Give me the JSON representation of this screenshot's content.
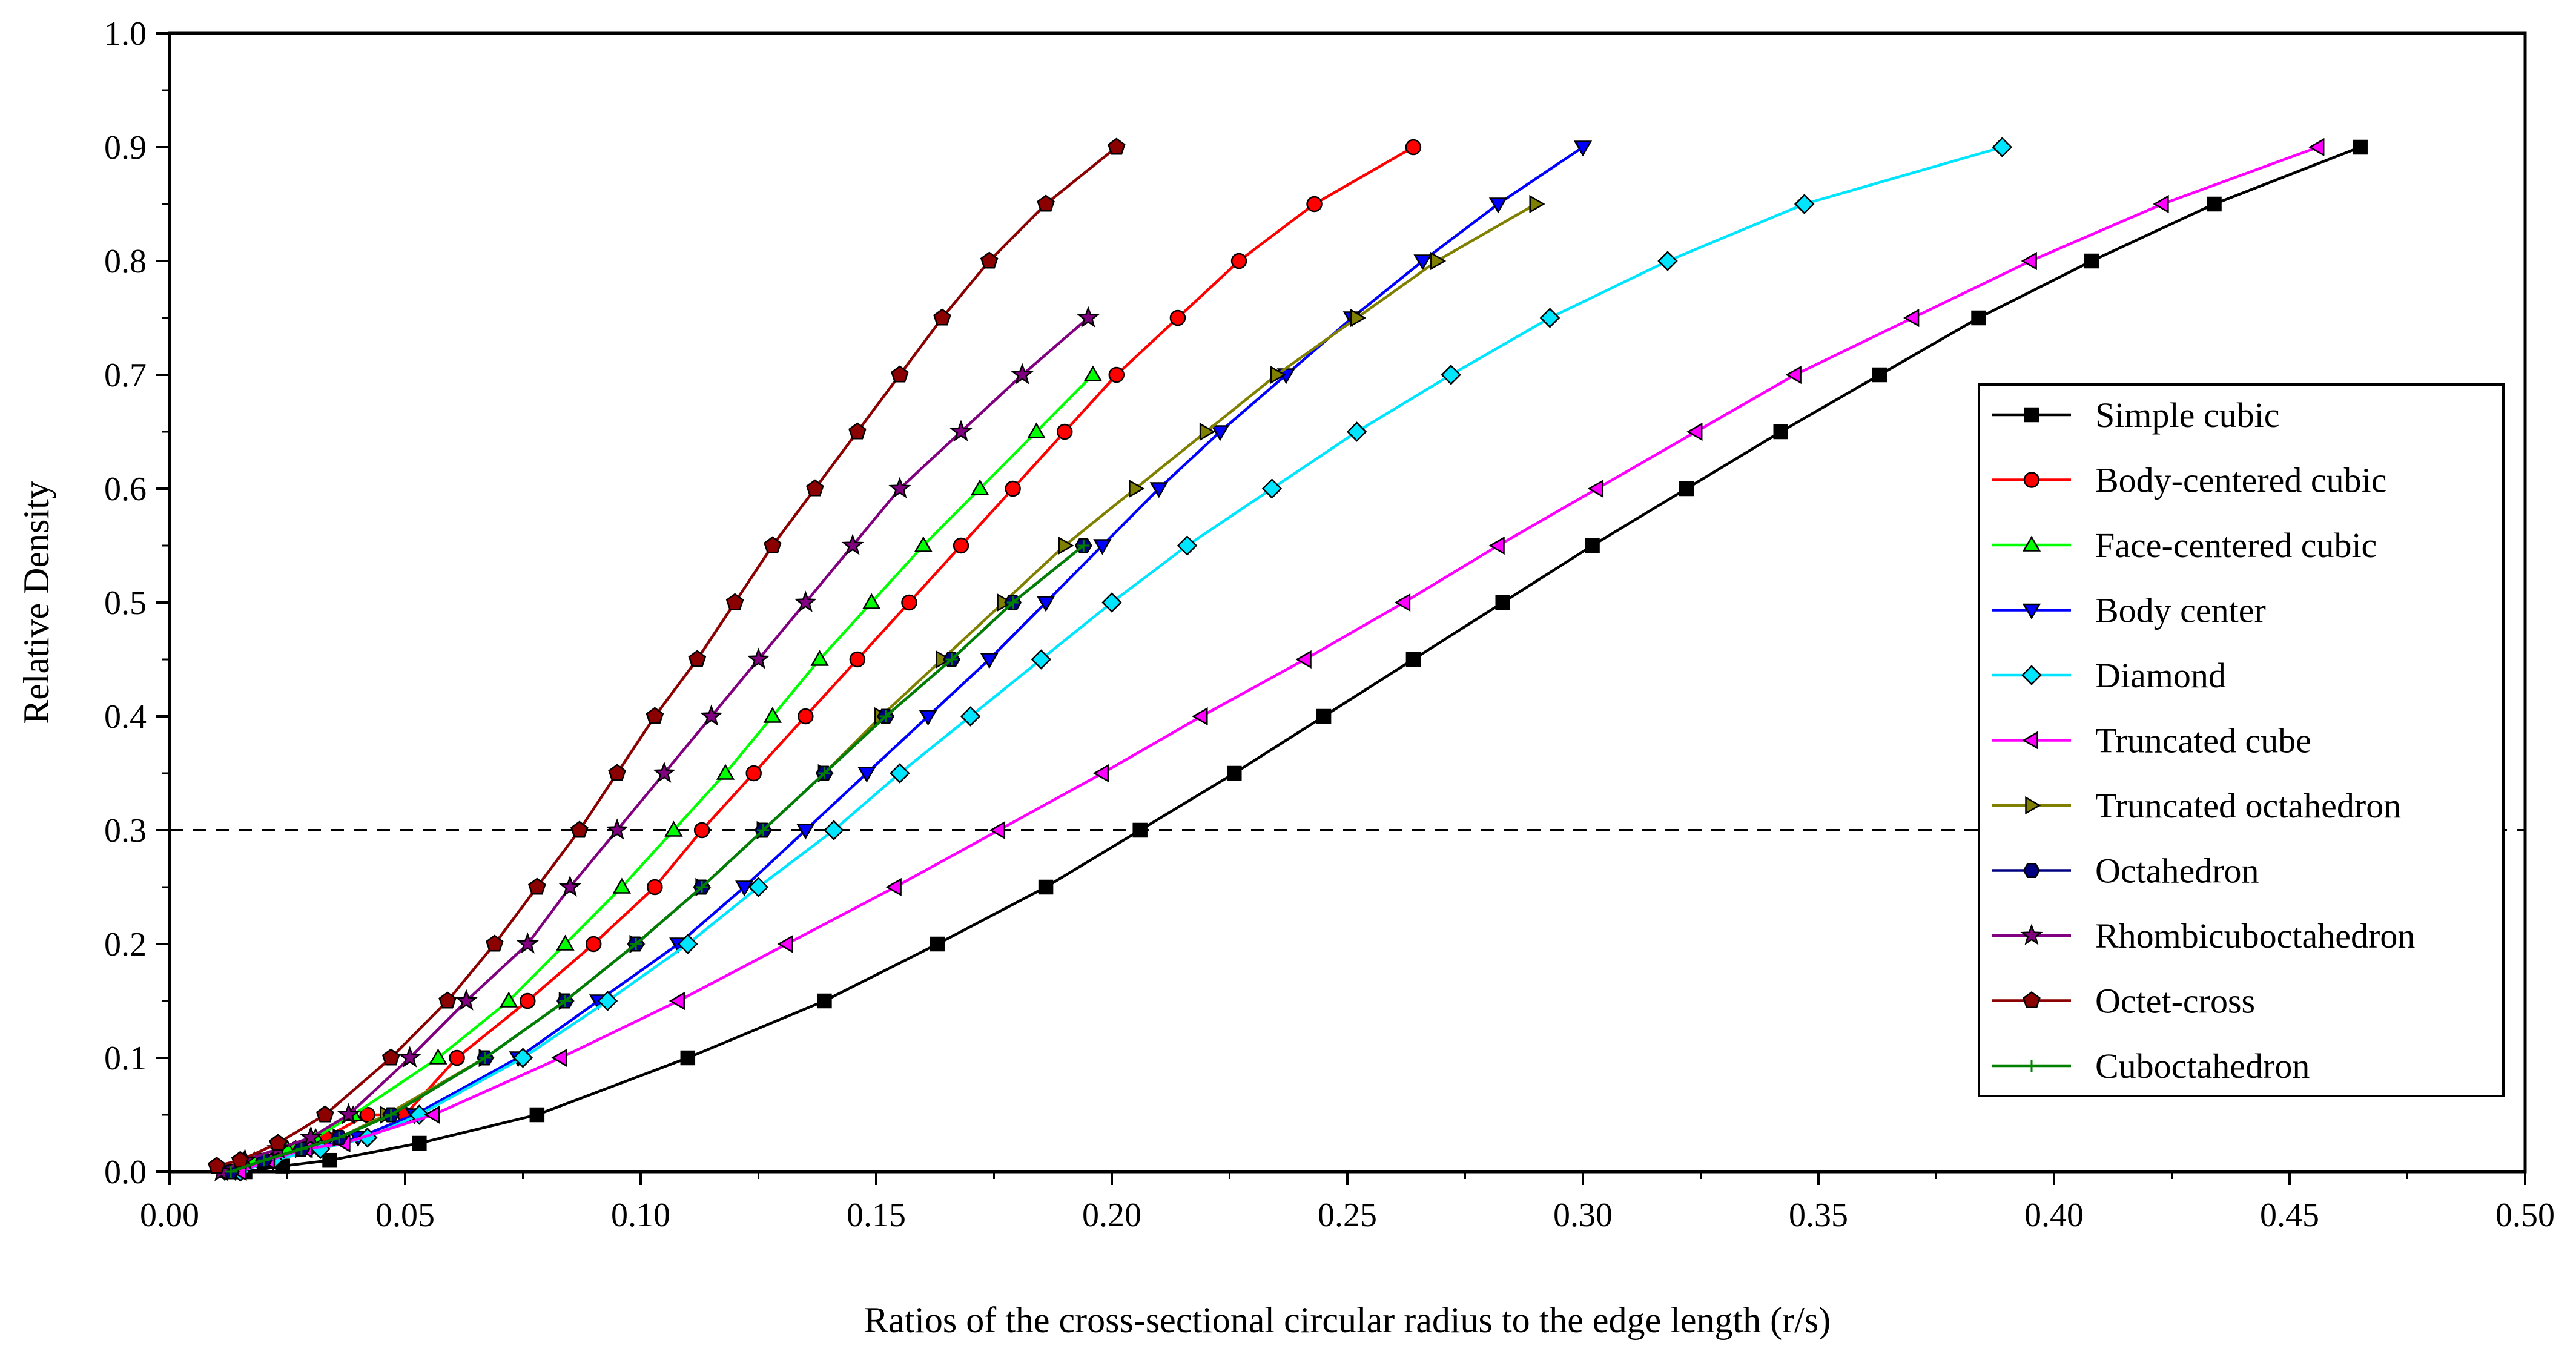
{
  "chart_data": {
    "type": "line",
    "title": "",
    "xlabel": "Ratios of the cross-sectional circular radius to the edge length (r/s)",
    "ylabel": "Relative Density",
    "xlim": [
      0.0,
      0.5
    ],
    "ylim": [
      0.0,
      1.0
    ],
    "xticks": [
      0.0,
      0.05,
      0.1,
      0.15,
      0.2,
      0.25,
      0.3,
      0.35,
      0.4,
      0.45,
      0.5
    ],
    "xtick_labels": [
      "0.00",
      "0.05",
      "0.10",
      "0.15",
      "0.20",
      "0.25",
      "0.30",
      "0.35",
      "0.40",
      "0.45",
      "0.50"
    ],
    "yticks": [
      0.0,
      0.1,
      0.2,
      0.3,
      0.4,
      0.5,
      0.6,
      0.7,
      0.8,
      0.9,
      1.0
    ],
    "ytick_labels": [
      "0.0",
      "0.1",
      "0.2",
      "0.3",
      "0.4",
      "0.5",
      "0.6",
      "0.7",
      "0.8",
      "0.9",
      "1.0"
    ],
    "grid": false,
    "legend_position": "right",
    "reference_line": {
      "y": 0.3,
      "style": "dashed"
    },
    "series": [
      {
        "name": "Simple cubic",
        "color": "#000000",
        "marker": "square",
        "x": [
          0.016,
          0.024,
          0.034,
          0.053,
          0.078,
          0.11,
          0.139,
          0.163,
          0.186,
          0.206,
          0.226,
          0.245,
          0.264,
          0.283,
          0.302,
          0.322,
          0.342,
          0.363,
          0.384,
          0.408,
          0.434,
          0.465
        ],
        "y": [
          0.0,
          0.005,
          0.01,
          0.025,
          0.05,
          0.1,
          0.15,
          0.2,
          0.25,
          0.3,
          0.35,
          0.4,
          0.45,
          0.5,
          0.55,
          0.6,
          0.65,
          0.7,
          0.75,
          0.8,
          0.85,
          0.9
        ]
      },
      {
        "name": "Body-centered cubic",
        "color": "#ff0000",
        "marker": "circle",
        "x": [
          0.012,
          0.019,
          0.027,
          0.033,
          0.042,
          0.05,
          0.061,
          0.076,
          0.09,
          0.103,
          0.113,
          0.124,
          0.135,
          0.146,
          0.157,
          0.168,
          0.179,
          0.19,
          0.201,
          0.214,
          0.227,
          0.243,
          0.264
        ],
        "y": [
          0.0,
          0.01,
          0.02,
          0.03,
          0.05,
          0.05,
          0.1,
          0.15,
          0.2,
          0.25,
          0.3,
          0.35,
          0.4,
          0.45,
          0.5,
          0.55,
          0.6,
          0.65,
          0.7,
          0.75,
          0.8,
          0.85,
          0.9
        ]
      },
      {
        "name": "Face-centered cubic",
        "color": "#00ff00",
        "marker": "triangle-up",
        "x": [
          0.012,
          0.018,
          0.025,
          0.031,
          0.039,
          0.057,
          0.072,
          0.084,
          0.096,
          0.107,
          0.118,
          0.128,
          0.138,
          0.149,
          0.16,
          0.172,
          0.184,
          0.196
        ],
        "y": [
          0.0,
          0.01,
          0.02,
          0.03,
          0.05,
          0.1,
          0.15,
          0.2,
          0.25,
          0.3,
          0.35,
          0.4,
          0.45,
          0.5,
          0.55,
          0.6,
          0.65,
          0.7
        ]
      },
      {
        "name": "Body center",
        "color": "#0000ff",
        "marker": "triangle-down",
        "x": [
          0.014,
          0.021,
          0.03,
          0.04,
          0.052,
          0.074,
          0.091,
          0.108,
          0.122,
          0.135,
          0.148,
          0.161,
          0.174,
          0.186,
          0.198,
          0.21,
          0.223,
          0.237,
          0.251,
          0.266,
          0.282,
          0.3
        ],
        "y": [
          0.0,
          0.01,
          0.02,
          0.03,
          0.05,
          0.1,
          0.15,
          0.2,
          0.25,
          0.3,
          0.35,
          0.4,
          0.45,
          0.5,
          0.55,
          0.6,
          0.65,
          0.7,
          0.75,
          0.8,
          0.85,
          0.9
        ]
      },
      {
        "name": "Diamond",
        "color": "#00e5ff",
        "marker": "diamond",
        "x": [
          0.015,
          0.022,
          0.032,
          0.042,
          0.053,
          0.075,
          0.093,
          0.11,
          0.125,
          0.141,
          0.155,
          0.17,
          0.185,
          0.2,
          0.216,
          0.234,
          0.252,
          0.272,
          0.293,
          0.318,
          0.347,
          0.389
        ],
        "y": [
          0.0,
          0.01,
          0.02,
          0.03,
          0.05,
          0.1,
          0.15,
          0.2,
          0.25,
          0.3,
          0.35,
          0.4,
          0.45,
          0.5,
          0.55,
          0.6,
          0.65,
          0.7,
          0.75,
          0.8,
          0.85,
          0.9
        ]
      },
      {
        "name": "Truncated cube",
        "color": "#ff00ff",
        "marker": "triangle-left",
        "x": [
          0.015,
          0.021,
          0.029,
          0.037,
          0.056,
          0.083,
          0.108,
          0.131,
          0.154,
          0.176,
          0.198,
          0.219,
          0.241,
          0.262,
          0.282,
          0.303,
          0.324,
          0.345,
          0.37,
          0.395,
          0.423,
          0.456
        ],
        "y": [
          0.0,
          0.01,
          0.02,
          0.025,
          0.05,
          0.1,
          0.15,
          0.2,
          0.25,
          0.3,
          0.35,
          0.4,
          0.45,
          0.5,
          0.55,
          0.6,
          0.65,
          0.7,
          0.75,
          0.8,
          0.85,
          0.9
        ]
      },
      {
        "name": "Truncated octahedron",
        "color": "#808000",
        "marker": "triangle-right",
        "x": [
          0.013,
          0.02,
          0.028,
          0.036,
          0.046,
          0.067,
          0.084,
          0.099,
          0.113,
          0.126,
          0.139,
          0.151,
          0.164,
          0.177,
          0.19,
          0.205,
          0.22,
          0.235,
          0.252,
          0.269,
          0.29
        ],
        "y": [
          0.0,
          0.01,
          0.02,
          0.03,
          0.05,
          0.1,
          0.15,
          0.2,
          0.25,
          0.3,
          0.35,
          0.4,
          0.45,
          0.5,
          0.55,
          0.6,
          0.65,
          0.7,
          0.75,
          0.8,
          0.85
        ]
      },
      {
        "name": "Octahedron",
        "color": "#000080",
        "marker": "hexagon",
        "x": [
          0.013,
          0.02,
          0.028,
          0.036,
          0.047,
          0.067,
          0.084,
          0.099,
          0.113,
          0.126,
          0.139,
          0.152,
          0.166,
          0.179,
          0.194
        ],
        "y": [
          0.0,
          0.01,
          0.02,
          0.03,
          0.05,
          0.1,
          0.15,
          0.2,
          0.25,
          0.3,
          0.35,
          0.4,
          0.45,
          0.5,
          0.55
        ]
      },
      {
        "name": "Rhombicuboctahedron",
        "color": "#800080",
        "marker": "star",
        "x": [
          0.011,
          0.016,
          0.023,
          0.03,
          0.038,
          0.051,
          0.063,
          0.076,
          0.085,
          0.095,
          0.105,
          0.115,
          0.125,
          0.135,
          0.145,
          0.155,
          0.168,
          0.181,
          0.195
        ],
        "y": [
          0.0,
          0.01,
          0.02,
          0.03,
          0.05,
          0.1,
          0.15,
          0.2,
          0.25,
          0.3,
          0.35,
          0.4,
          0.45,
          0.5,
          0.55,
          0.6,
          0.65,
          0.7,
          0.75
        ]
      },
      {
        "name": "Octet-cross",
        "color": "#8b0000",
        "marker": "pentagon",
        "x": [
          0.01,
          0.015,
          0.023,
          0.033,
          0.047,
          0.059,
          0.069,
          0.078,
          0.087,
          0.095,
          0.103,
          0.112,
          0.12,
          0.128,
          0.137,
          0.146,
          0.155,
          0.164,
          0.174,
          0.186,
          0.201
        ],
        "y": [
          0.005,
          0.01,
          0.025,
          0.05,
          0.1,
          0.15,
          0.2,
          0.25,
          0.3,
          0.35,
          0.4,
          0.45,
          0.5,
          0.55,
          0.6,
          0.65,
          0.7,
          0.75,
          0.8,
          0.85,
          0.9
        ]
      },
      {
        "name": "Cuboctahedron",
        "color": "#008000",
        "marker": "plus",
        "x": [
          0.013,
          0.02,
          0.028,
          0.036,
          0.047,
          0.067,
          0.084,
          0.099,
          0.113,
          0.126,
          0.139,
          0.152,
          0.166,
          0.179,
          0.194
        ],
        "y": [
          0.0,
          0.01,
          0.02,
          0.03,
          0.05,
          0.1,
          0.15,
          0.2,
          0.25,
          0.3,
          0.35,
          0.4,
          0.45,
          0.5,
          0.55
        ]
      }
    ]
  }
}
